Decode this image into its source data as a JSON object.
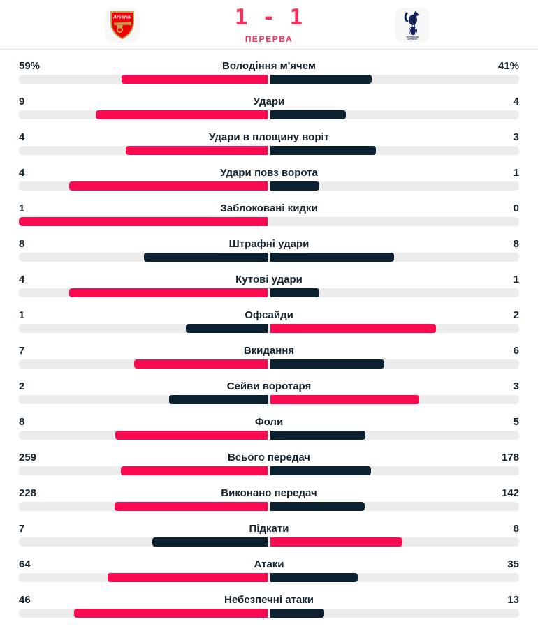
{
  "header": {
    "home_team": {
      "name": "Arsenal",
      "crest_text": "Arsenal"
    },
    "away_team": {
      "name": "Tottenham Hotspur",
      "crest_text_line1": "TOTTENHAM",
      "crest_text_line2": "HOTSPUR"
    },
    "score": {
      "home": "1",
      "separator": "-",
      "away": "1",
      "display": "1 - 1"
    },
    "status": "ПЕРЕРВА"
  },
  "colors": {
    "accent_pink": "#FA0A50",
    "dark_navy": "#0C2231",
    "track_gray": "#ECECEC",
    "header_red": "#F5305B",
    "text_dark": "#16242F",
    "arsenal_red": "#EF0107",
    "arsenal_gold": "#C8A055",
    "spurs_navy": "#132257"
  },
  "stats": {
    "rows": [
      {
        "label": "Володіння м'ячем",
        "home": 59,
        "away": 41,
        "home_display": "59%",
        "away_display": "41%"
      },
      {
        "label": "Удари",
        "home": 9,
        "away": 4
      },
      {
        "label": "Удари в площину воріт",
        "home": 4,
        "away": 3
      },
      {
        "label": "Удари повз ворота",
        "home": 4,
        "away": 1
      },
      {
        "label": "Заблоковані кидки",
        "home": 1,
        "away": 0
      },
      {
        "label": "Штрафні удари",
        "home": 8,
        "away": 8
      },
      {
        "label": "Кутові удари",
        "home": 4,
        "away": 1
      },
      {
        "label": "Офсайди",
        "home": 1,
        "away": 2
      },
      {
        "label": "Вкидання",
        "home": 7,
        "away": 6
      },
      {
        "label": "Сейви воротаря",
        "home": 2,
        "away": 3
      },
      {
        "label": "Фоли",
        "home": 8,
        "away": 5
      },
      {
        "label": "Всього передач",
        "home": 259,
        "away": 178
      },
      {
        "label": "Виконано передач",
        "home": 228,
        "away": 142
      },
      {
        "label": "Підкати",
        "home": 7,
        "away": 8
      },
      {
        "label": "Атаки",
        "home": 64,
        "away": 35
      },
      {
        "label": "Небезпечні атаки",
        "home": 46,
        "away": 13
      }
    ]
  }
}
